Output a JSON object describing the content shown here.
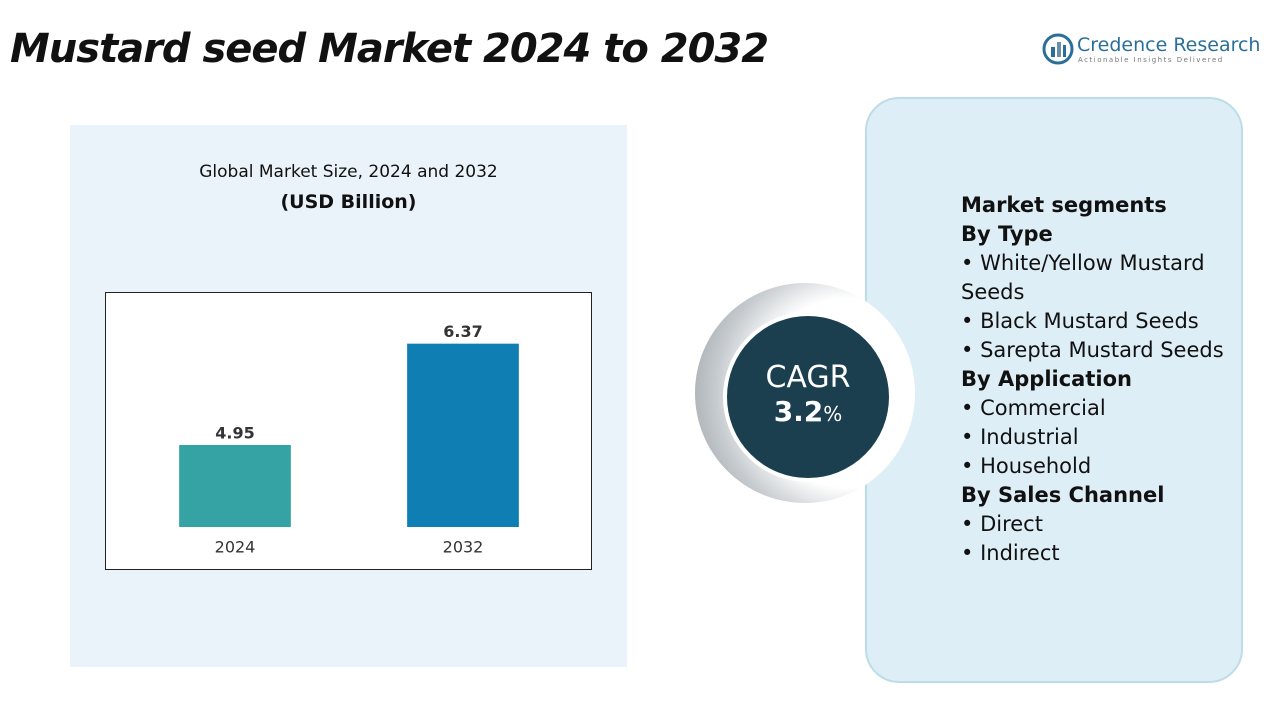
{
  "header": {
    "title": "Mustard seed Market 2024 to 2032",
    "brand": "Credence Research",
    "tagline": "Actionable Insights Delivered"
  },
  "chart_data": {
    "type": "bar",
    "title": "Global Market Size, 2024 and 2032",
    "subtitle": "(USD Billion)",
    "categories": [
      "2024",
      "2032"
    ],
    "values": [
      4.95,
      6.37
    ],
    "colors": [
      "#35a3a3",
      "#0f7eb3"
    ],
    "ylim": [
      3.8,
      6.8
    ]
  },
  "cagr": {
    "label": "CAGR",
    "value": 3.2,
    "unit": "%"
  },
  "segments": {
    "title": "Market segments",
    "groups": [
      {
        "name": "By Type",
        "items": [
          "White/Yellow Mustard Seeds",
          "Black Mustard Seeds",
          "Sarepta Mustard Seeds"
        ]
      },
      {
        "name": "By Application",
        "items": [
          "Commercial",
          "Industrial",
          "Household"
        ]
      },
      {
        "name": "By Sales Channel",
        "items": [
          "Direct",
          "Indirect"
        ]
      }
    ]
  }
}
